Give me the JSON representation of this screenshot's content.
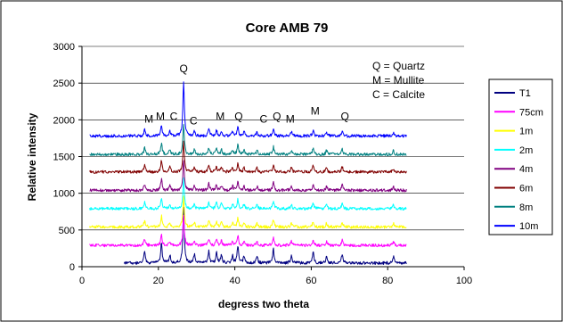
{
  "chart_data": {
    "type": "line",
    "title": "Core AMB 79",
    "xlabel": "degress two theta",
    "ylabel": "Relative intensity",
    "xlim": [
      0,
      100
    ],
    "ylim": [
      0,
      3000
    ],
    "x_ticks": [
      "0",
      "20",
      "40",
      "60",
      "80",
      "100"
    ],
    "y_ticks": [
      "0",
      "500",
      "1000",
      "1500",
      "2000",
      "2500",
      "3000"
    ],
    "grid": "horizontal",
    "legend_position": "right",
    "key": [
      "Q = Quartz",
      "M = Mullite",
      "C = Calcite"
    ],
    "series": [
      {
        "name": "T1",
        "color": "#000080",
        "x_range": [
          11,
          85
        ],
        "baseline": 50
      },
      {
        "name": "75cm",
        "color": "#FF00FF",
        "x_range": [
          2,
          85
        ],
        "baseline": 290
      },
      {
        "name": "1m",
        "color": "#FFFF00",
        "x_range": [
          2,
          85
        ],
        "baseline": 540
      },
      {
        "name": "2m",
        "color": "#00FFFF",
        "x_range": [
          2,
          85
        ],
        "baseline": 790
      },
      {
        "name": "4m",
        "color": "#800080",
        "x_range": [
          2,
          85
        ],
        "baseline": 1040
      },
      {
        "name": "6m",
        "color": "#800000",
        "x_range": [
          2,
          85
        ],
        "baseline": 1290
      },
      {
        "name": "8m",
        "color": "#008080",
        "x_range": [
          2,
          85
        ],
        "baseline": 1530
      },
      {
        "name": "10m",
        "color": "#0000FF",
        "x_range": [
          2,
          85
        ],
        "baseline": 1780
      }
    ],
    "peaks": [
      {
        "x": 16.4,
        "h": 160
      },
      {
        "x": 20.8,
        "h": 280
      },
      {
        "x": 23.0,
        "h": 110
      },
      {
        "x": 26.6,
        "h": 750
      },
      {
        "x": 29.4,
        "h": 120
      },
      {
        "x": 33.2,
        "h": 170
      },
      {
        "x": 35.2,
        "h": 140
      },
      {
        "x": 36.5,
        "h": 120
      },
      {
        "x": 39.4,
        "h": 110
      },
      {
        "x": 40.8,
        "h": 230
      },
      {
        "x": 42.4,
        "h": 100
      },
      {
        "x": 45.8,
        "h": 100
      },
      {
        "x": 50.1,
        "h": 190
      },
      {
        "x": 54.8,
        "h": 110
      },
      {
        "x": 60.5,
        "h": 150
      },
      {
        "x": 64.0,
        "h": 90
      },
      {
        "x": 68.1,
        "h": 130
      },
      {
        "x": 81.5,
        "h": 90
      }
    ],
    "annotations": [
      {
        "label": "Q",
        "x": 26.6,
        "y": 2650
      },
      {
        "label": "M",
        "x": 17.5,
        "y": 1960
      },
      {
        "label": "M",
        "x": 20.5,
        "y": 2000
      },
      {
        "label": "C",
        "x": 24.0,
        "y": 2000
      },
      {
        "label": "C",
        "x": 29.2,
        "y": 1935
      },
      {
        "label": "M",
        "x": 36.2,
        "y": 2000
      },
      {
        "label": "Q",
        "x": 41.0,
        "y": 2000
      },
      {
        "label": "C",
        "x": 47.5,
        "y": 1960
      },
      {
        "label": "Q",
        "x": 51.0,
        "y": 2000
      },
      {
        "label": "M",
        "x": 54.5,
        "y": 1960
      },
      {
        "label": "M",
        "x": 61.0,
        "y": 2070
      },
      {
        "label": "Q",
        "x": 68.8,
        "y": 2000
      }
    ]
  }
}
